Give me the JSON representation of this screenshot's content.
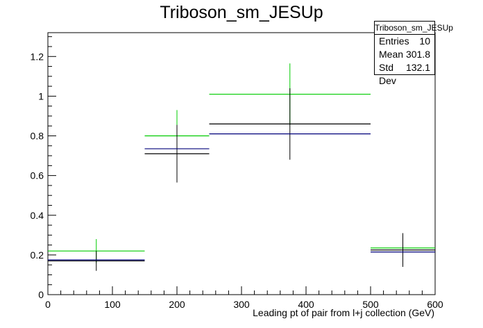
{
  "chart_data": {
    "type": "histogram",
    "title": "Triboson_sm_JESUp",
    "xlabel": "Leading pt of pair from l+j collection (GeV)",
    "ylabel": "",
    "xlim": [
      0,
      600
    ],
    "ylim": [
      0,
      1.32
    ],
    "x_ticks": [
      0,
      100,
      200,
      300,
      400,
      500,
      600
    ],
    "y_ticks": [
      0,
      0.2,
      0.4,
      0.6,
      0.8,
      1,
      1.2
    ],
    "y_tick_labels": [
      "0",
      "0.2",
      "0.4",
      "0.6",
      "0.8",
      "1",
      "1.2"
    ],
    "bins": [
      {
        "xlow": 0,
        "xhigh": 150,
        "center": 75
      },
      {
        "xlow": 150,
        "xhigh": 250,
        "center": 200
      },
      {
        "xlow": 250,
        "xhigh": 500,
        "center": 375
      },
      {
        "xlow": 500,
        "xhigh": 600,
        "center": 550
      }
    ],
    "series": [
      {
        "color": "#00cc00",
        "values": [
          0.22,
          0.8,
          1.01,
          0.235
        ],
        "errors": [
          0.06,
          0.13,
          0.155,
          0.07
        ]
      },
      {
        "color": "#000000",
        "values": [
          0.17,
          0.71,
          0.86,
          0.225
        ],
        "errors": [
          0.05,
          0.145,
          0.18,
          0.085
        ]
      },
      {
        "color": "#00007a",
        "values": [
          0.175,
          0.735,
          0.81,
          0.215
        ],
        "errors": [
          0,
          0,
          0,
          0
        ]
      }
    ]
  },
  "statbox": {
    "title": "Triboson_sm_JESUp",
    "entries_label": "Entries",
    "entries_value": "10",
    "mean_label": "Mean",
    "mean_value": "301.8",
    "stddev_label": "Std Dev",
    "stddev_value": "132.1"
  }
}
